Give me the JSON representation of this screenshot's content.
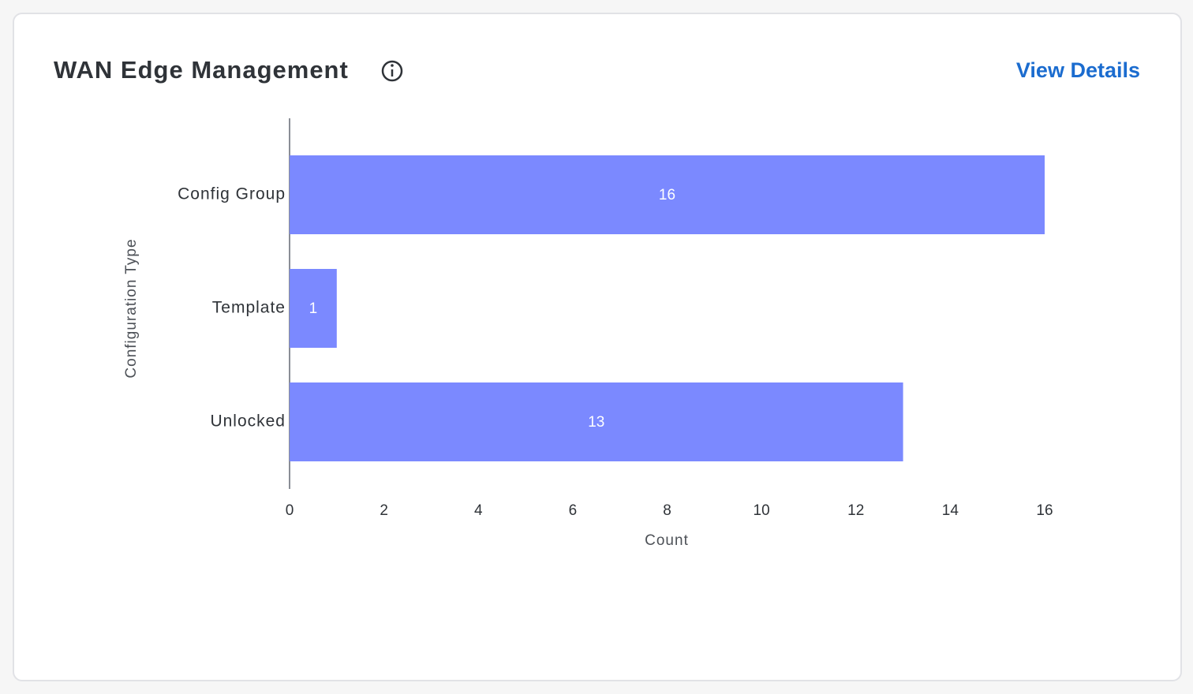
{
  "header": {
    "title": "WAN Edge Management",
    "link": "View Details"
  },
  "chart_data": {
    "type": "hbar",
    "categories": [
      "Config Group",
      "Template",
      "Unlocked"
    ],
    "values": [
      16,
      1,
      13
    ],
    "color": "#7b89ff",
    "xlim": [
      0,
      16
    ],
    "xticks": [
      0,
      2,
      4,
      6,
      8,
      10,
      12,
      14,
      16
    ],
    "x_label": "Count",
    "y_label": "Configuration Type"
  }
}
